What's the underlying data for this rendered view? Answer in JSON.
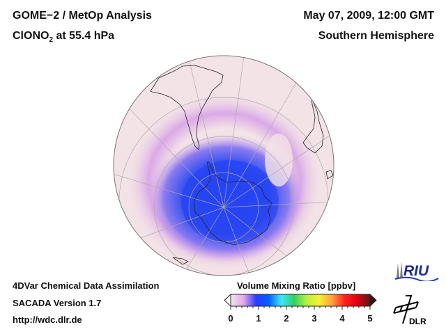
{
  "header": {
    "title_line1": "GOME−2 / MetOp Analysis",
    "species_main": "ClONO",
    "species_sub": "2",
    "species_rest": " at 55.4 hPa",
    "date": "May 07, 2009, 12:00 GMT",
    "region": "Southern Hemisphere"
  },
  "footer": {
    "line1": "4DVar Chemical Data Assimilation",
    "line2": "SACADA Version 1.7",
    "line3": "http://wdc.dlr.de"
  },
  "colorbar": {
    "title": "Volume Mixing Ratio [ppbv]",
    "ticks": [
      "0",
      "1",
      "2",
      "3",
      "4",
      "5"
    ],
    "range": [
      0,
      5
    ],
    "colors": [
      "#f4e6ea",
      "#e6a8e8",
      "#2a3cff",
      "#0060ff",
      "#40e8ff",
      "#30d060",
      "#b8f040",
      "#f8f030",
      "#ffa040",
      "#ff2020",
      "#e00010",
      "#5a1a1a"
    ]
  },
  "logos": {
    "riu": "RIU",
    "dlr": "DLR"
  },
  "map": {
    "projection": "orthographic",
    "center": "south-pole",
    "background_color": "#f3e3e6",
    "low_color": "#2a40f0"
  }
}
